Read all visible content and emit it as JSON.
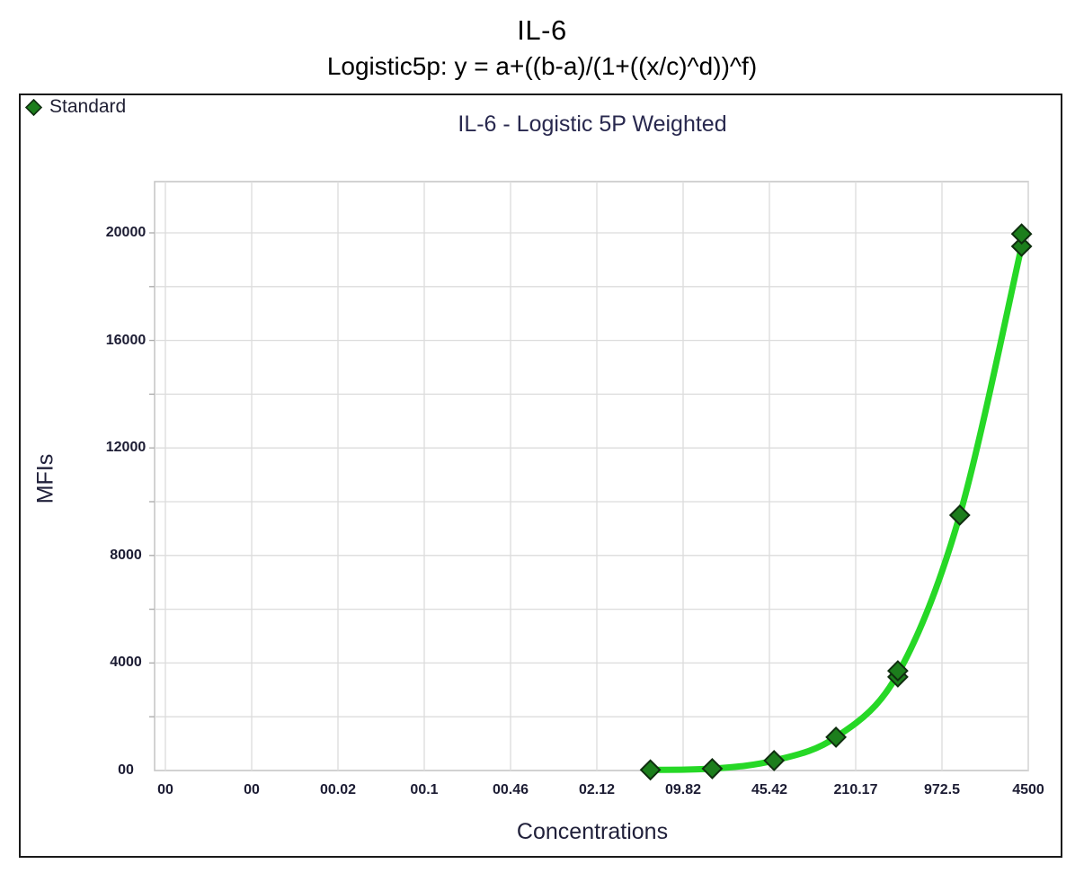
{
  "titles": {
    "line1": "IL-6",
    "line2": "Logistic5p: y = a+((b-a)/(1+((x/c)^d))^f)"
  },
  "legend": {
    "label": "Standard",
    "marker": "diamond-icon"
  },
  "chart": {
    "title": "IL-6 - Logistic 5P Weighted",
    "xlabel": "Concentrations",
    "ylabel": "MFIs"
  },
  "colors": {
    "curve_green": "#26d826",
    "marker_fill": "#1c7e1c",
    "marker_stroke": "#0f2e0f",
    "gridline": "#dcdcdc",
    "plot_border": "#c3c3c3",
    "panel_border": "#1a1a1a",
    "tick_text": "#1c1c33",
    "title_text": "#28284e"
  },
  "chart_data": {
    "type": "scatter",
    "fit": "logistic5p-weighted",
    "title": "IL-6 - Logistic 5P Weighted",
    "xlabel": "Concentrations",
    "ylabel": "MFIs",
    "grid": true,
    "legend_position": "top-left",
    "x_axis": {
      "scale": "log",
      "tick_labels": [
        "00",
        "00",
        "00.02",
        "00.1",
        "00.46",
        "02.12",
        "09.82",
        "45.42",
        "210.17",
        "972.5",
        "4500"
      ],
      "tick_values": [
        0,
        0,
        0.02,
        0.1,
        0.46,
        2.12,
        9.82,
        45.42,
        210.17,
        972.5,
        4500
      ]
    },
    "y_axis": {
      "min": 0,
      "max": 21900,
      "minor_step": 2000,
      "major_step": 4000,
      "tick_labels": [
        "00",
        "4000",
        "8000",
        "12000",
        "16000",
        "20000"
      ],
      "tick_values": [
        0,
        4000,
        8000,
        12000,
        16000,
        20000
      ]
    },
    "series": [
      {
        "name": "Standard",
        "marker": "diamond",
        "points": [
          {
            "conc": 5.49,
            "mfi": 25
          },
          {
            "conc": 16.46,
            "mfi": 70
          },
          {
            "conc": 49.38,
            "mfi": 370
          },
          {
            "conc": 148.15,
            "mfi": 1240
          },
          {
            "conc": 444.4,
            "mfi": 3480
          },
          {
            "conc": 444.4,
            "mfi": 3710
          },
          {
            "conc": 1333.3,
            "mfi": 9500
          },
          {
            "conc": 4000,
            "mfi": 19500
          },
          {
            "conc": 4000,
            "mfi": 19960
          }
        ],
        "fit_curve_anchors": [
          [
            5.49,
            25
          ],
          [
            16.46,
            70
          ],
          [
            49.38,
            370
          ],
          [
            148.15,
            1240
          ],
          [
            444.4,
            3595
          ],
          [
            1333.3,
            9500
          ],
          [
            4000,
            19500
          ]
        ]
      }
    ]
  }
}
